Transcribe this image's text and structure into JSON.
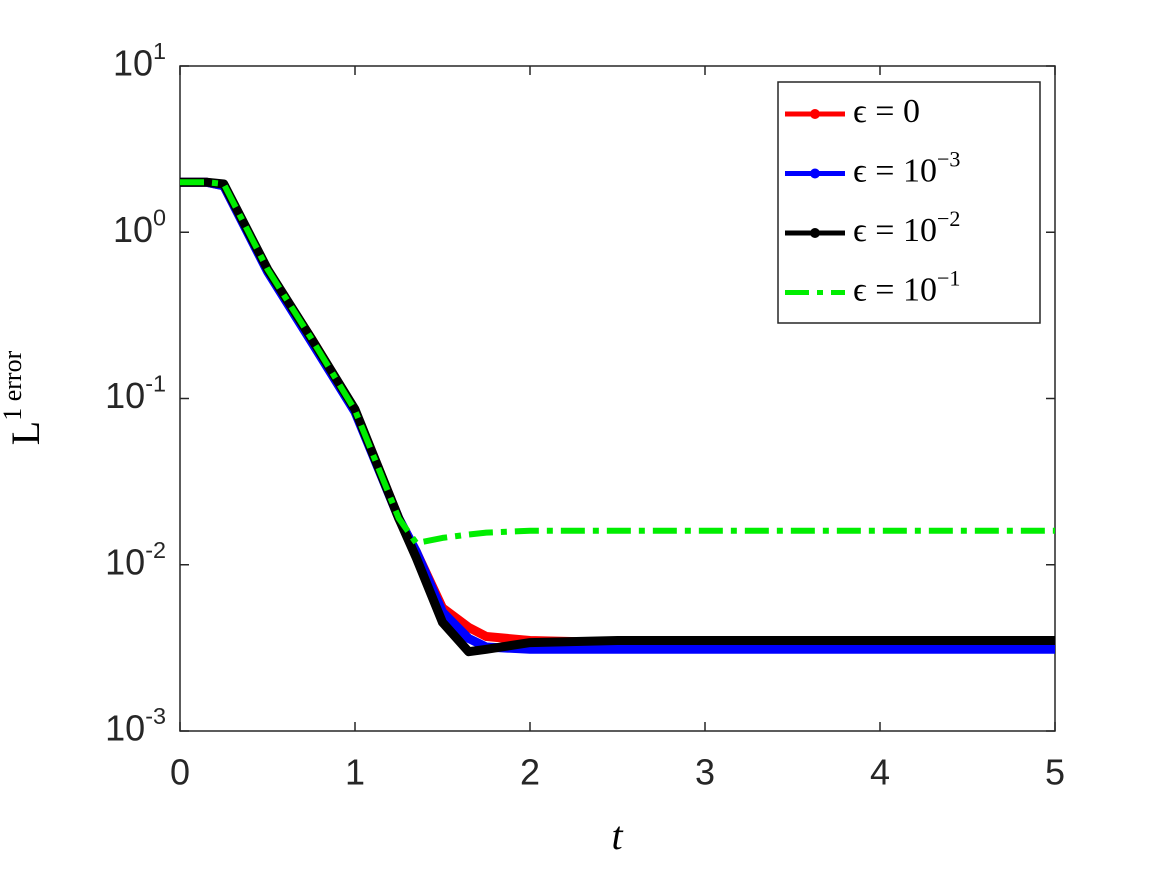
{
  "chart_data": {
    "type": "line",
    "x_label": "t",
    "y_label": "L^1 error",
    "x": [
      0,
      0.15,
      0.25,
      0.5,
      0.75,
      1,
      1.25,
      1.35,
      1.5,
      1.65,
      1.75,
      2,
      2.5,
      3,
      4,
      5
    ],
    "series": [
      {
        "name": "ϵ = 0",
        "color": "#ff0000",
        "dash": "solid",
        "values": [
          2,
          2,
          1.9,
          0.59,
          0.23,
          0.085,
          0.019,
          0.012,
          0.0055,
          0.0042,
          0.0037,
          0.0035,
          0.0034,
          0.0033,
          0.0033,
          0.0033
        ]
      },
      {
        "name": "ϵ = 10^−3",
        "color": "#0000ff",
        "dash": "solid",
        "values": [
          2,
          2,
          1.9,
          0.58,
          0.22,
          0.083,
          0.019,
          0.012,
          0.0052,
          0.0036,
          0.0032,
          0.0031,
          0.0031,
          0.0031,
          0.0031,
          0.0031
        ]
      },
      {
        "name": "ϵ = 10^−2",
        "color": "#000000",
        "dash": "solid",
        "values": [
          2,
          2,
          1.95,
          0.6,
          0.23,
          0.086,
          0.019,
          0.011,
          0.0045,
          0.003,
          0.0031,
          0.0034,
          0.0035,
          0.0035,
          0.0035,
          0.0035
        ]
      },
      {
        "name": "ϵ = 10^−1",
        "color": "#00ee00",
        "dash": "dashdot",
        "values": [
          2,
          2,
          1.95,
          0.6,
          0.23,
          0.085,
          0.019,
          0.0135,
          0.0145,
          0.0152,
          0.0156,
          0.016,
          0.016,
          0.016,
          0.016,
          0.016
        ]
      }
    ],
    "xlim": [
      0,
      5
    ],
    "xticks": [
      0,
      1,
      2,
      3,
      4,
      5
    ],
    "ylim": [
      0.001,
      10
    ],
    "y_scale": "log",
    "yticks": [
      {
        "value": 0.001,
        "label": "10^-3"
      },
      {
        "value": 0.01,
        "label": "10^-2"
      },
      {
        "value": 0.1,
        "label": "10^-1"
      },
      {
        "value": 1,
        "label": "10^0"
      },
      {
        "value": 10,
        "label": "10^1"
      }
    ],
    "grid": false,
    "legend": "upper right"
  }
}
